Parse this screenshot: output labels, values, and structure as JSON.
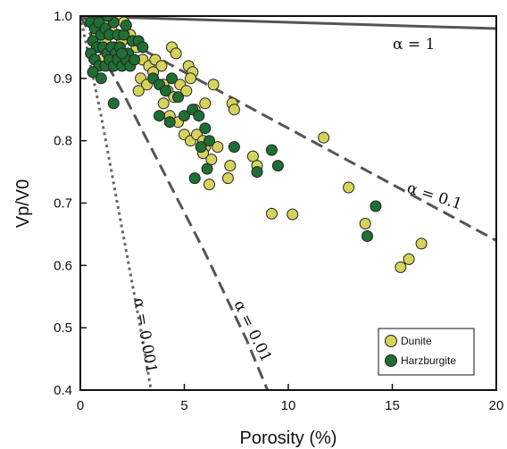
{
  "chart_data": {
    "type": "scatter",
    "xlabel": "Porosity (%)",
    "ylabel": "Vp/V0",
    "xlim": [
      0,
      20
    ],
    "ylim": [
      0.4,
      1.0
    ],
    "xticks": [
      0,
      5,
      10,
      15,
      20
    ],
    "yticks": [
      0.4,
      0.5,
      0.6,
      0.7,
      0.8,
      0.9,
      1.0
    ],
    "xtick_labels": [
      "0",
      "5",
      "10",
      "15",
      "20"
    ],
    "ytick_labels": [
      "0.4",
      "0.5",
      "0.6",
      "0.7",
      "0.8",
      "0.9",
      "1.0"
    ],
    "grid": false,
    "legend": {
      "placement": "bottom-right",
      "entries": [
        {
          "name": "Dunite",
          "color": "#d6d35c"
        },
        {
          "name": "Harzburgite",
          "color": "#1f6e33"
        }
      ]
    },
    "curves": [
      {
        "label": "α = 1",
        "style": "solid",
        "color": "#555555",
        "x": [
          0,
          20
        ],
        "y": [
          1.0,
          0.98
        ]
      },
      {
        "label": "α = 0.1",
        "style": "dashed",
        "color": "#555555",
        "x": [
          0,
          5,
          10,
          15,
          20
        ],
        "y": [
          1.0,
          0.91,
          0.82,
          0.73,
          0.64
        ]
      },
      {
        "label": "α = 0.01",
        "style": "dashed",
        "color": "#555555",
        "x": [
          0,
          2,
          4,
          6,
          8,
          9.0
        ],
        "y": [
          1.0,
          0.88,
          0.75,
          0.62,
          0.48,
          0.4
        ]
      },
      {
        "label": "α = 0.001",
        "style": "dotted",
        "color": "#666666",
        "x": [
          0,
          1,
          2,
          3,
          3.4
        ],
        "y": [
          1.0,
          0.84,
          0.66,
          0.48,
          0.4
        ]
      }
    ],
    "series": [
      {
        "name": "Dunite",
        "color": "#d6d35c",
        "points": [
          [
            1.0,
            1.0
          ],
          [
            1.3,
            0.99
          ],
          [
            1.5,
            0.98
          ],
          [
            1.8,
            1.0
          ],
          [
            2.1,
            0.99
          ],
          [
            0.8,
            0.97
          ],
          [
            1.2,
            0.96
          ],
          [
            1.6,
            0.95
          ],
          [
            2.0,
            0.96
          ],
          [
            2.4,
            0.97
          ],
          [
            2.7,
            0.95
          ],
          [
            3.0,
            0.93
          ],
          [
            3.3,
            0.92
          ],
          [
            3.6,
            0.93
          ],
          [
            3.9,
            0.92
          ],
          [
            4.4,
            0.95
          ],
          [
            4.6,
            0.94
          ],
          [
            5.2,
            0.92
          ],
          [
            5.4,
            0.91
          ],
          [
            2.9,
            0.9
          ],
          [
            3.2,
            0.89
          ],
          [
            3.5,
            0.91
          ],
          [
            4.0,
            0.89
          ],
          [
            4.2,
            0.88
          ],
          [
            4.8,
            0.89
          ],
          [
            5.1,
            0.88
          ],
          [
            5.3,
            0.9
          ],
          [
            2.8,
            0.88
          ],
          [
            4.0,
            0.86
          ],
          [
            4.3,
            0.84
          ],
          [
            4.7,
            0.83
          ],
          [
            5.0,
            0.81
          ],
          [
            5.3,
            0.8
          ],
          [
            5.6,
            0.81
          ],
          [
            5.9,
            0.8
          ],
          [
            6.0,
            0.79
          ],
          [
            6.3,
            0.77
          ],
          [
            6.0,
            0.86
          ],
          [
            6.4,
            0.89
          ],
          [
            6.2,
            0.73
          ],
          [
            5.9,
            0.78
          ],
          [
            7.1,
            0.74
          ],
          [
            7.2,
            0.76
          ],
          [
            7.3,
            0.86
          ],
          [
            7.4,
            0.85
          ],
          [
            8.3,
            0.775
          ],
          [
            8.5,
            0.76
          ],
          [
            11.7,
            0.805
          ],
          [
            12.9,
            0.725
          ],
          [
            9.2,
            0.683
          ],
          [
            10.2,
            0.682
          ],
          [
            13.7,
            0.667
          ],
          [
            15.4,
            0.597
          ],
          [
            15.8,
            0.61
          ],
          [
            16.4,
            0.635
          ],
          [
            1.0,
            0.93
          ],
          [
            1.5,
            0.92
          ],
          [
            2.3,
            0.93
          ],
          [
            0.8,
            0.95
          ],
          [
            1.9,
            0.94
          ],
          [
            6.6,
            0.79
          ],
          [
            5.5,
            0.85
          ],
          [
            4.5,
            0.87
          ]
        ]
      },
      {
        "name": "Harzburgite",
        "color": "#1f6e33",
        "points": [
          [
            0.5,
            0.99
          ],
          [
            0.7,
            0.98
          ],
          [
            0.9,
            0.99
          ],
          [
            1.0,
            0.97
          ],
          [
            1.2,
            0.98
          ],
          [
            1.4,
            0.97
          ],
          [
            1.6,
            0.99
          ],
          [
            1.8,
            0.97
          ],
          [
            0.6,
            0.96
          ],
          [
            0.8,
            0.95
          ],
          [
            1.1,
            0.95
          ],
          [
            1.3,
            0.94
          ],
          [
            1.5,
            0.95
          ],
          [
            1.7,
            0.94
          ],
          [
            1.9,
            0.95
          ],
          [
            2.1,
            0.97
          ],
          [
            2.3,
            0.94
          ],
          [
            2.5,
            0.96
          ],
          [
            0.5,
            0.94
          ],
          [
            0.7,
            0.93
          ],
          [
            0.9,
            0.92
          ],
          [
            1.2,
            0.92
          ],
          [
            1.4,
            0.93
          ],
          [
            1.6,
            0.92
          ],
          [
            1.8,
            0.93
          ],
          [
            2.0,
            0.92
          ],
          [
            2.2,
            0.93
          ],
          [
            2.4,
            0.92
          ],
          [
            2.6,
            0.93
          ],
          [
            0.6,
            0.91
          ],
          [
            1.0,
            0.9
          ],
          [
            1.6,
            0.86
          ],
          [
            2.0,
            0.94
          ],
          [
            3.5,
            0.9
          ],
          [
            3.8,
            0.89
          ],
          [
            4.1,
            0.88
          ],
          [
            4.4,
            0.9
          ],
          [
            4.7,
            0.87
          ],
          [
            3.8,
            0.84
          ],
          [
            4.3,
            0.83
          ],
          [
            5.0,
            0.84
          ],
          [
            5.4,
            0.85
          ],
          [
            5.7,
            0.84
          ],
          [
            6.0,
            0.82
          ],
          [
            6.2,
            0.8
          ],
          [
            5.8,
            0.79
          ],
          [
            7.4,
            0.79
          ],
          [
            6.1,
            0.755
          ],
          [
            5.5,
            0.74
          ],
          [
            8.5,
            0.75
          ],
          [
            9.2,
            0.785
          ],
          [
            9.5,
            0.76
          ],
          [
            13.8,
            0.647
          ],
          [
            14.2,
            0.695
          ],
          [
            2.8,
            0.96
          ],
          [
            3.0,
            0.95
          ],
          [
            1.3,
            1.0
          ],
          [
            2.2,
            0.985
          ]
        ]
      }
    ]
  }
}
